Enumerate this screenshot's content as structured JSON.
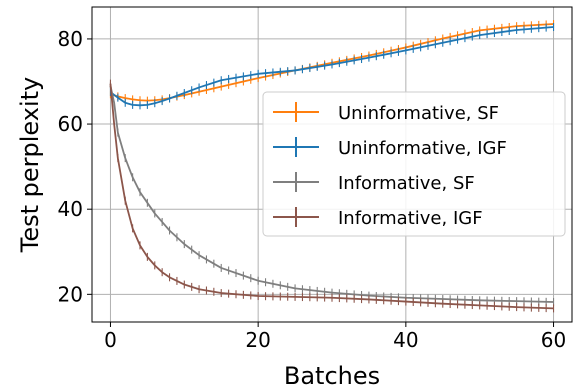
{
  "chart_data": {
    "type": "line",
    "xlabel": "Batches",
    "ylabel": "Test perplexity",
    "xlim": [
      -2.5,
      62.5
    ],
    "ylim": [
      13.5,
      87.5
    ],
    "xticks": [
      0,
      20,
      40,
      60
    ],
    "yticks": [
      20,
      40,
      60,
      80
    ],
    "grid": true,
    "legend_placement": "center-right",
    "series": [
      {
        "name": "Uninformative, SF",
        "color": "#ff7f0e",
        "x": [
          0,
          1,
          2,
          3,
          4,
          5,
          6,
          7,
          8,
          10,
          12,
          15,
          20,
          25,
          30,
          35,
          40,
          45,
          50,
          55,
          60
        ],
        "y": [
          67,
          66.5,
          66.1,
          65.8,
          65.6,
          65.5,
          65.6,
          65.8,
          66.1,
          66.8,
          67.6,
          68.8,
          70.8,
          72.6,
          74.4,
          76.1,
          78.0,
          80.1,
          82.0,
          83.0,
          83.5
        ]
      },
      {
        "name": "Uninformative, IGF",
        "color": "#1f77b4",
        "x": [
          0,
          1,
          2,
          3,
          4,
          5,
          6,
          7,
          8,
          10,
          12,
          15,
          20,
          25,
          30,
          35,
          40,
          45,
          50,
          55,
          60
        ],
        "y": [
          67.5,
          66.2,
          65.0,
          64.5,
          64.4,
          64.5,
          64.9,
          65.4,
          66.0,
          67.3,
          68.6,
          70.3,
          71.8,
          72.6,
          74.0,
          75.6,
          77.3,
          79.1,
          80.9,
          82.1,
          82.8
        ]
      },
      {
        "name": "Informative, SF",
        "color": "#7f7f7f",
        "x": [
          0,
          0.5,
          1,
          2,
          3,
          4,
          5,
          6,
          7,
          8,
          10,
          12,
          15,
          20,
          25,
          30,
          35,
          40,
          45,
          50,
          55,
          60
        ],
        "y": [
          69,
          65,
          58,
          52,
          47.5,
          44,
          41.5,
          39,
          37,
          35,
          31.8,
          29.2,
          26.2,
          23.2,
          21.4,
          20.4,
          19.7,
          19.2,
          18.9,
          18.6,
          18.4,
          18.2
        ]
      },
      {
        "name": "Informative, IGF",
        "color": "#8c564b",
        "x": [
          0,
          0.5,
          1,
          2,
          3,
          4,
          5,
          6,
          7,
          8,
          10,
          12,
          15,
          20,
          25,
          30,
          35,
          40,
          45,
          50,
          55,
          60
        ],
        "y": [
          69.5,
          60,
          52,
          42,
          35.5,
          31.5,
          28.8,
          26.8,
          25.2,
          24,
          22.3,
          21.2,
          20.3,
          19.6,
          19.4,
          19.2,
          18.8,
          18.3,
          17.8,
          17.4,
          17.0,
          16.7
        ]
      }
    ]
  }
}
